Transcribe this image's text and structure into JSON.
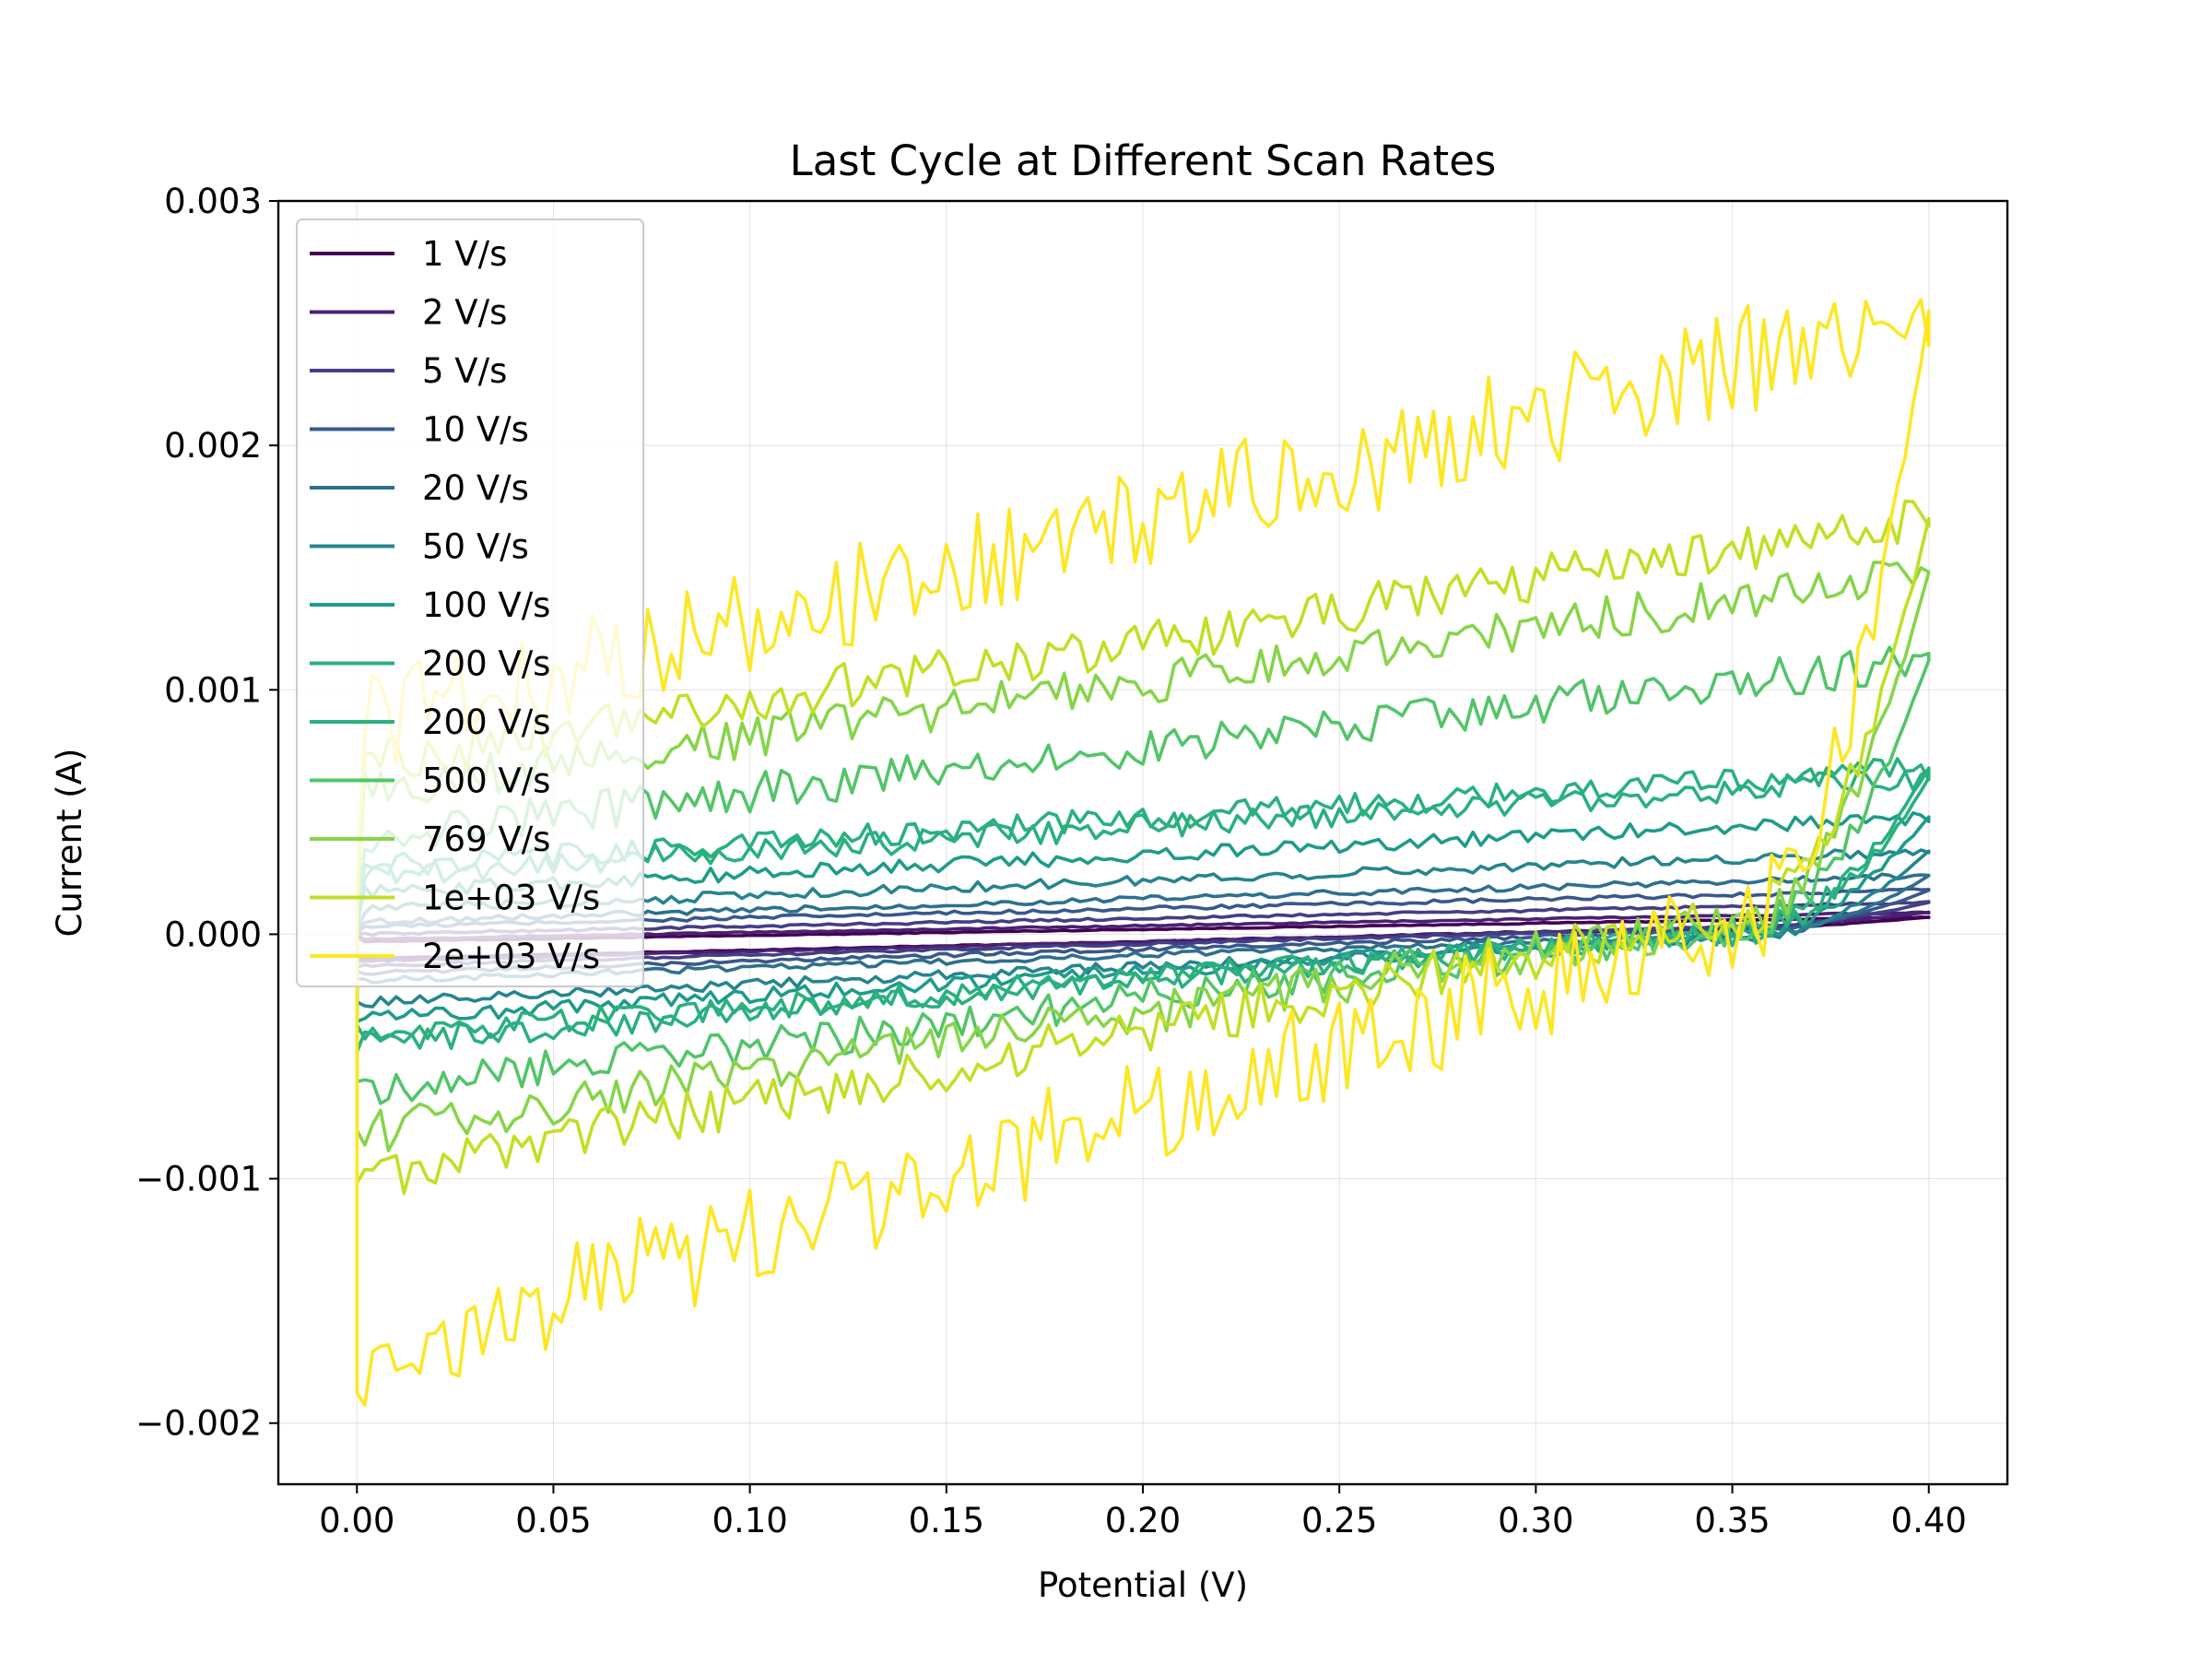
{
  "chart_data": {
    "type": "line",
    "title": "Last Cycle at Different Scan Rates",
    "xlabel": "Potential (V)",
    "ylabel": "Current (A)",
    "xlim": [
      -0.02,
      0.42
    ],
    "ylim": [
      -0.00225,
      0.003
    ],
    "x_ticks": [
      0.0,
      0.05,
      0.1,
      0.15,
      0.2,
      0.25,
      0.3,
      0.35,
      0.4
    ],
    "x_tick_labels": [
      "0.00",
      "0.05",
      "0.10",
      "0.15",
      "0.20",
      "0.25",
      "0.30",
      "0.35",
      "0.40"
    ],
    "y_ticks": [
      -0.002,
      -0.001,
      0.0,
      0.001,
      0.002,
      0.003
    ],
    "y_tick_labels": [
      "−0.002",
      "−0.001",
      "0.000",
      "0.001",
      "0.002",
      "0.003"
    ],
    "grid": true,
    "legend_position": "upper-left",
    "x_range": [
      0.0,
      0.4
    ],
    "series": [
      {
        "name": "1 V/s",
        "color": "#440154",
        "upper_start": -3e-05,
        "upper_end": 7e-05,
        "lower_start": -0.0001,
        "lower_end": 4e-05,
        "noise": 2e-06
      },
      {
        "name": "2 V/s",
        "color": "#482173",
        "upper_start": -2e-05,
        "upper_end": 9e-05,
        "lower_start": -0.00011,
        "lower_end": 5e-05,
        "noise": 3e-06
      },
      {
        "name": "5 V/s",
        "color": "#433e85",
        "upper_start": 0.0,
        "upper_end": 0.00013,
        "lower_start": -0.00013,
        "lower_end": 5e-05,
        "noise": 5e-06
      },
      {
        "name": "10 V/s",
        "color": "#38588c",
        "upper_start": 3e-05,
        "upper_end": 0.00018,
        "lower_start": -0.00016,
        "lower_end": 4e-05,
        "noise": 8e-06
      },
      {
        "name": "20 V/s",
        "color": "#2d708e",
        "upper_start": 5e-05,
        "upper_end": 0.00024,
        "lower_start": -0.00019,
        "lower_end": 2e-05,
        "noise": 1.2e-05
      },
      {
        "name": "50 V/s",
        "color": "#25858e",
        "upper_start": 0.0001,
        "upper_end": 0.00034,
        "lower_start": -0.00028,
        "lower_end": 2e-05,
        "noise": 2e-05
      },
      {
        "name": "100 V/s",
        "color": "#1e9b8a",
        "upper_start": 0.00017,
        "upper_end": 0.00048,
        "lower_start": -0.00035,
        "lower_end": 5e-05,
        "noise": 3e-05
      },
      {
        "name": "200 V/s",
        "color": "#2ab07f",
        "upper_start": 0.00027,
        "upper_end": 0.00068,
        "lower_start": -0.00045,
        "lower_end": 8e-05,
        "noise": 5e-05
      },
      {
        "name": "200 V/s",
        "color": "#2ab07f",
        "upper_start": 0.00024,
        "upper_end": 0.00064,
        "lower_start": -0.00042,
        "lower_end": 6e-05,
        "noise": 5e-05
      },
      {
        "name": "500 V/s",
        "color": "#52c569",
        "upper_start": 0.0004,
        "upper_end": 0.00112,
        "lower_start": -0.00065,
        "lower_end": 0.00012,
        "noise": 8e-05
      },
      {
        "name": "769 V/s",
        "color": "#86d549",
        "upper_start": 0.00058,
        "upper_end": 0.00148,
        "lower_start": -0.00082,
        "lower_end": 0.00018,
        "noise": 9e-05
      },
      {
        "name": "1e+03 V/s",
        "color": "#c2df23",
        "upper_start": 0.0007,
        "upper_end": 0.0017,
        "lower_start": -0.001,
        "lower_end": 0.00022,
        "noise": 0.0001
      },
      {
        "name": "2e+03 V/s",
        "color": "#fde725",
        "upper_start": 0.00085,
        "upper_end": 0.00255,
        "lower_start": -0.00175,
        "lower_end": 0.0003,
        "noise": 0.00022
      }
    ]
  }
}
